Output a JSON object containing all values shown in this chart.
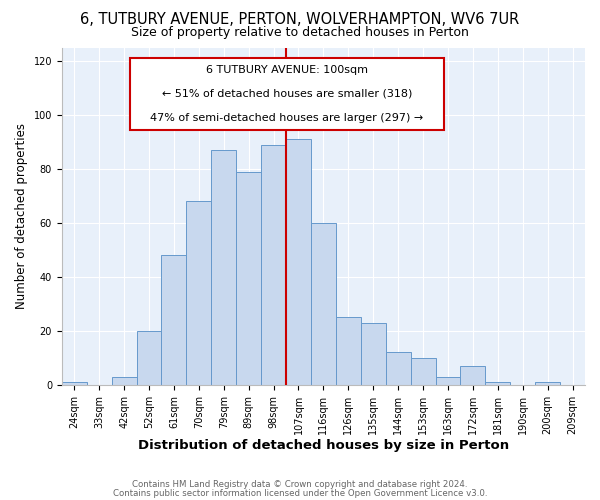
{
  "title": "6, TUTBURY AVENUE, PERTON, WOLVERHAMPTON, WV6 7UR",
  "subtitle": "Size of property relative to detached houses in Perton",
  "xlabel": "Distribution of detached houses by size in Perton",
  "ylabel": "Number of detached properties",
  "bar_labels": [
    "24sqm",
    "33sqm",
    "42sqm",
    "52sqm",
    "61sqm",
    "70sqm",
    "79sqm",
    "89sqm",
    "98sqm",
    "107sqm",
    "116sqm",
    "126sqm",
    "135sqm",
    "144sqm",
    "153sqm",
    "163sqm",
    "172sqm",
    "181sqm",
    "190sqm",
    "200sqm",
    "209sqm"
  ],
  "bar_values": [
    1,
    0,
    3,
    20,
    48,
    68,
    87,
    79,
    89,
    91,
    60,
    25,
    23,
    12,
    10,
    3,
    7,
    1,
    0,
    1,
    0
  ],
  "bar_color": "#c8d8ee",
  "bar_edgecolor": "#6699cc",
  "vline_x": 8.5,
  "vline_color": "#cc0000",
  "annotation_line1": "6 TUTBURY AVENUE: 100sqm",
  "annotation_line2": "← 51% of detached houses are smaller (318)",
  "annotation_line3": "47% of semi-detached houses are larger (297) →",
  "ylim": [
    0,
    125
  ],
  "yticks": [
    0,
    20,
    40,
    60,
    80,
    100,
    120
  ],
  "title_fontsize": 10.5,
  "subtitle_fontsize": 9,
  "xlabel_fontsize": 9.5,
  "ylabel_fontsize": 8.5,
  "tick_fontsize": 7,
  "annotation_fontsize": 8,
  "footer_line1": "Contains HM Land Registry data © Crown copyright and database right 2024.",
  "footer_line2": "Contains public sector information licensed under the Open Government Licence v3.0.",
  "bg_color": "#ffffff",
  "plot_bg_color": "#e8f0fa"
}
